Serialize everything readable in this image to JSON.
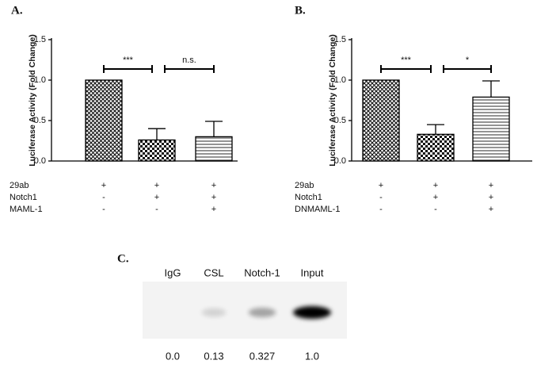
{
  "chart_data": [
    {
      "type": "bar",
      "panel": "A.",
      "ylabel": "Luciferase Activity (Fold  Change)",
      "conditions": [
        {
          "name": "29ab",
          "marks": [
            "+",
            "+",
            "+"
          ]
        },
        {
          "name": "Notch1",
          "marks": [
            "-",
            "+",
            "+"
          ]
        },
        {
          "name": "MAML-1",
          "marks": [
            "-",
            "-",
            "+"
          ]
        }
      ],
      "values": [
        1.0,
        0.26,
        0.3
      ],
      "errors": [
        null,
        0.14,
        0.19
      ],
      "patterns": [
        "crosshatch",
        "checker",
        "hlines"
      ],
      "significance": [
        "***",
        "n.s."
      ],
      "ylim": [
        0,
        1.5
      ],
      "yticks": [
        {
          "value": 0,
          "label": "0.0"
        },
        0.5,
        {
          "value": 1,
          "label": "1.0"
        },
        1.5
      ]
    },
    {
      "type": "bar",
      "panel": "B.",
      "ylabel": "Luciferase Activity (Fold  Change)",
      "conditions": [
        {
          "name": "29ab",
          "marks": [
            "+",
            "+",
            "+"
          ]
        },
        {
          "name": "Notch1",
          "marks": [
            "-",
            "+",
            "+"
          ]
        },
        {
          "name": "DNMAML-1",
          "marks": [
            "-",
            "-",
            "+"
          ]
        }
      ],
      "values": [
        1.0,
        0.33,
        0.79
      ],
      "errors": [
        null,
        0.12,
        0.2
      ],
      "patterns": [
        "crosshatch",
        "checker",
        "hlines"
      ],
      "significance": [
        "***",
        "*"
      ],
      "ylim": [
        0,
        1.5
      ],
      "yticks": [
        {
          "value": 0,
          "label": "0.0"
        },
        0.5,
        {
          "value": 1,
          "label": "1.0"
        },
        1.5
      ]
    }
  ],
  "blot": {
    "panel": "C.",
    "lanes": [
      "IgG",
      "CSL",
      "Notch-1",
      "Input"
    ],
    "values": [
      0.0,
      0.13,
      0.327,
      1.0
    ],
    "value_labels": [
      "0.0",
      "0.13",
      "0.327",
      "1.0"
    ]
  }
}
